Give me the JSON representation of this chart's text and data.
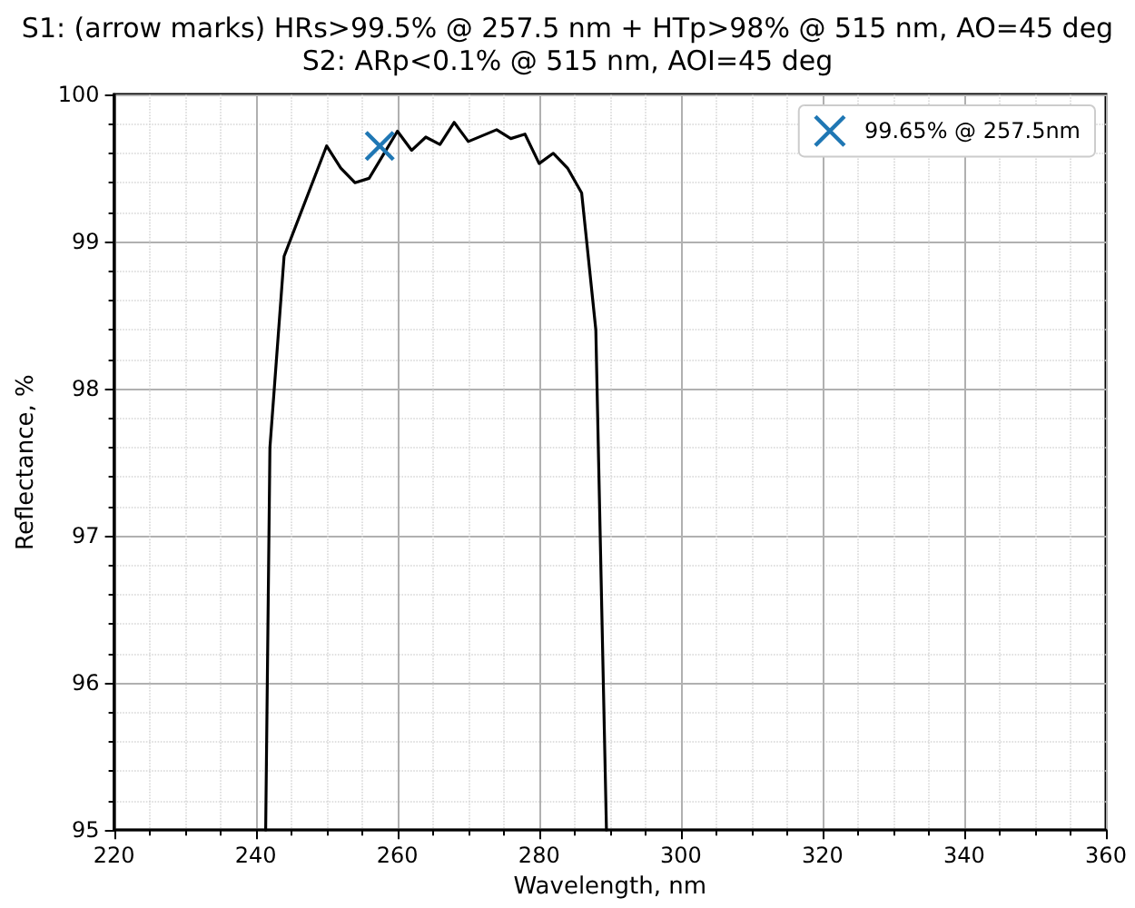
{
  "chart_data": {
    "type": "line",
    "title": "S1: (arrow marks) HRs>99.5% @ 257.5 nm + HTp>98% @ 515 nm, AO=45 deg",
    "subtitle": "S2: ARp<0.1% @ 515 nm, AOI=45 deg",
    "xlabel": "Wavelength, nm",
    "ylabel": "Reflectance, %",
    "x": [
      241.4,
      242,
      244,
      250,
      252,
      254,
      256,
      260,
      262,
      264,
      266,
      268,
      270,
      274,
      276,
      278,
      280,
      282,
      284,
      286,
      288,
      289.5
    ],
    "series": [
      {
        "color": "#000000",
        "values": [
          95,
          97.6,
          98.9,
          99.65,
          99.5,
          99.4,
          99.43,
          99.75,
          99.62,
          99.71,
          99.66,
          99.81,
          99.68,
          99.76,
          99.7,
          99.73,
          99.53,
          99.6,
          99.5,
          99.33,
          98.4,
          95
        ]
      },
      {
        "type": "scatter",
        "name": "99.65% @ 257.5nm",
        "color": "#1f77b4",
        "x": [
          257.5
        ],
        "values": [
          99.65
        ],
        "marker": "cross"
      }
    ],
    "xlim": [
      220,
      360
    ],
    "xticks": [
      220,
      240,
      260,
      280,
      300,
      320,
      340,
      360
    ],
    "ylim": [
      95,
      100
    ],
    "yticks": [
      95,
      96,
      97,
      98,
      99,
      100
    ],
    "grid": true,
    "legend": "top right"
  }
}
